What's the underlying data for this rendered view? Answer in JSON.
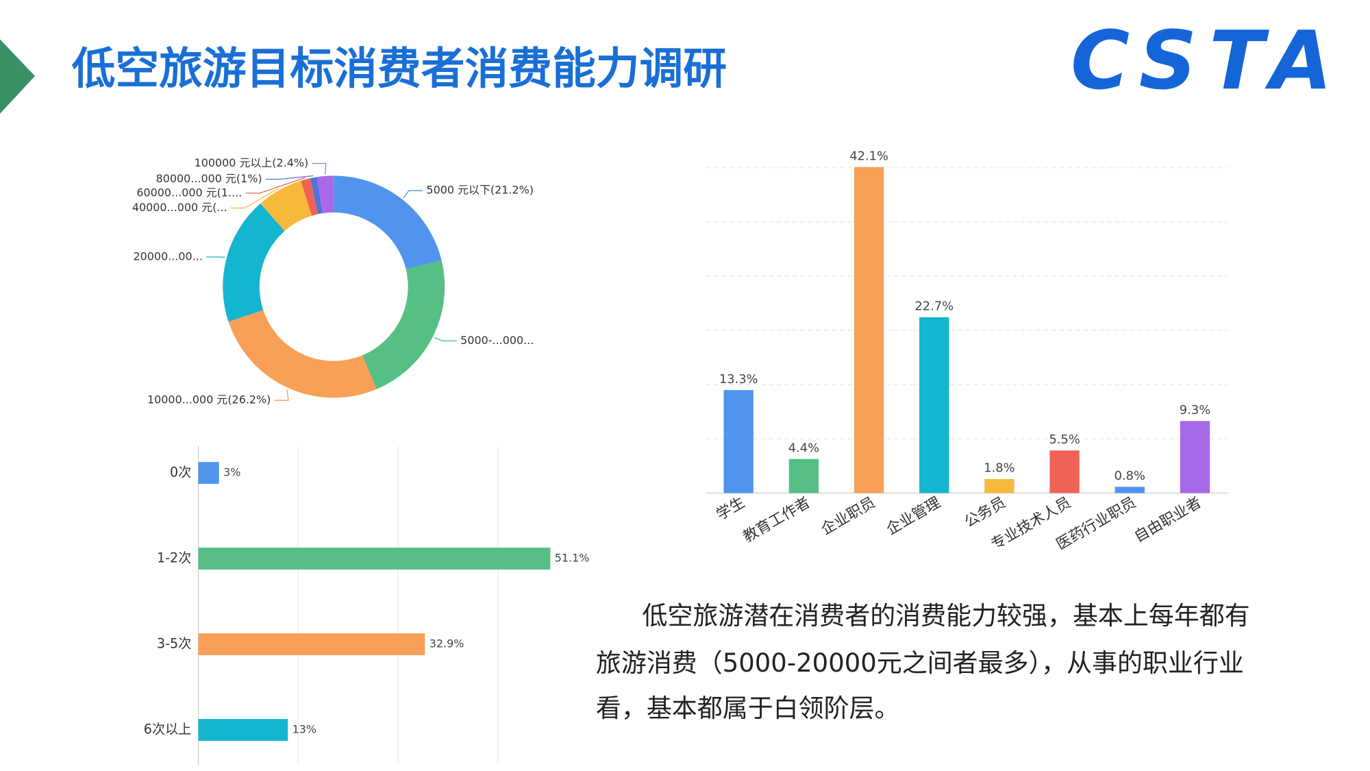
{
  "slide": {
    "title": "低空旅游目标消费者消费能力调研",
    "logo": "CSTA",
    "text_lines": [
      "低空旅游潜在消费者的消费能力较强，基本上每年都有",
      "旅游消费（5000-20000元之间者最多），从事的职业行业",
      "看，基本都属于白领阶层。"
    ]
  },
  "chart_data": [
    {
      "type": "donut",
      "categories": [
        "5000 元以下(21.2%)",
        "5000-...000...",
        "10000...000 元(26.2%)",
        "20000...00...",
        "40000...000 元(...",
        "60000...000 元(1....",
        "80000...000 元(1%)",
        "100000 元以上(2.4%)"
      ],
      "values": [
        21.2,
        22.5,
        26.2,
        18.6,
        6.7,
        1.4,
        1,
        2.4
      ],
      "colors": [
        "#5094ee",
        "#56bf84",
        "#f8a057",
        "#13b5cf",
        "#f7b93c",
        "#ef6357",
        "#4f74dc",
        "#a869e8"
      ]
    },
    {
      "type": "bar",
      "categories": [
        "学生",
        "教育工作者",
        "企业职员",
        "企业管理",
        "公务员",
        "专业技术人员",
        "医药行业职员",
        "自由职业者"
      ],
      "values": [
        13.3,
        4.4,
        42.1,
        22.7,
        1.8,
        5.5,
        0.8,
        9.3
      ],
      "value_labels": [
        "13.3%",
        "4.4%",
        "42.1%",
        "22.7%",
        "1.8%",
        "5.5%",
        "0.8%",
        "9.3%"
      ],
      "colors": [
        "#5094ee",
        "#56bf84",
        "#f8a057",
        "#13b5cf",
        "#f7b93c",
        "#ef6357",
        "#5094ee",
        "#a869e8"
      ],
      "ylim": [
        0,
        42
      ],
      "yticks": [
        0,
        7,
        14,
        21,
        28,
        35,
        42
      ],
      "grid": true
    },
    {
      "type": "hbar",
      "categories": [
        "0次",
        "1-2次",
        "3-5次",
        "6次以上"
      ],
      "values": [
        3,
        51.1,
        32.9,
        13
      ],
      "value_labels": [
        "3%",
        "51.1%",
        "32.9%",
        "13%"
      ],
      "colors": [
        "#5094ee",
        "#56bf84",
        "#f8a057",
        "#13b5cf"
      ],
      "xlim": [
        0,
        51.5
      ],
      "xticks": [
        0,
        14.5,
        29,
        43.5
      ],
      "grid": true
    }
  ]
}
